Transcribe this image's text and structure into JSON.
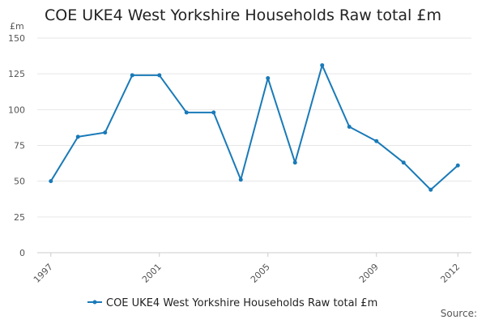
{
  "chart_data": {
    "type": "line",
    "title": "COE UKE4 West Yorkshire Households Raw total £m",
    "ylabel": "£m",
    "xlabel": "",
    "ylim": [
      0,
      150
    ],
    "yticks": [
      0,
      25,
      50,
      75,
      100,
      125,
      150
    ],
    "xticks": [
      1997,
      2001,
      2005,
      2009,
      2012
    ],
    "grid": true,
    "legend_position": "bottom",
    "series": [
      {
        "name": "COE UKE4 West Yorkshire Households Raw total £m",
        "color": "#1a7ab8",
        "x": [
          1997,
          1998,
          1999,
          2000,
          2001,
          2002,
          2003,
          2004,
          2005,
          2006,
          2007,
          2008,
          2009,
          2010,
          2011,
          2012
        ],
        "values": [
          50,
          81,
          84,
          124,
          124,
          98,
          98,
          51,
          122,
          63,
          131,
          88,
          78,
          63,
          44,
          61
        ]
      }
    ]
  },
  "source_label": "Source:"
}
